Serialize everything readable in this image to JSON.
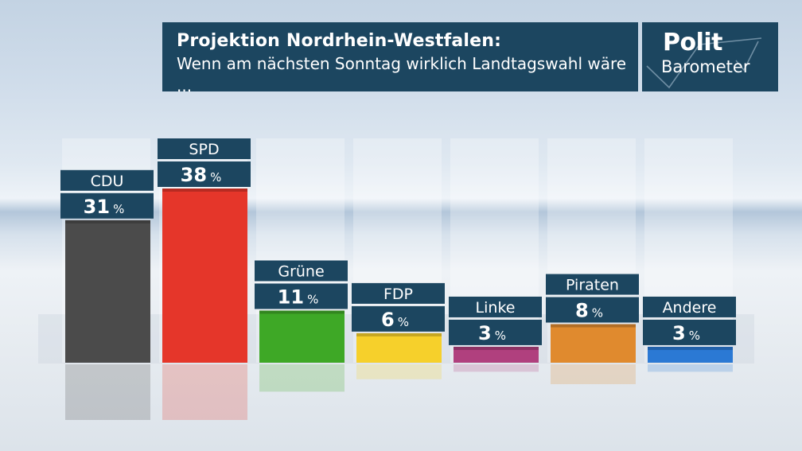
{
  "header": {
    "title": "Projektion Nordrhein-Westfalen:",
    "subtitle": "Wenn am nächsten Sonntag wirklich Landtagswahl wäre ..."
  },
  "logo": {
    "line1": "Polit",
    "line2": "Barometer",
    "icon": "checkmark-icon"
  },
  "chart_data": {
    "type": "bar",
    "categories": [
      "CDU",
      "SPD",
      "Grüne",
      "FDP",
      "Linke",
      "Piraten",
      "Andere"
    ],
    "values": [
      31,
      38,
      11,
      6,
      3,
      8,
      3
    ],
    "unit": "%",
    "colors": [
      "#4b4b4b",
      "#e5362a",
      "#3ea826",
      "#f6d02b",
      "#b0407e",
      "#e08a2e",
      "#2b79d4"
    ],
    "ylim": [
      0,
      38
    ]
  }
}
